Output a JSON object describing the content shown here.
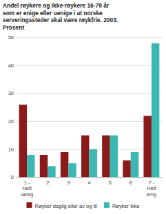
{
  "chart_data": {
    "type": "bar",
    "title": "Andel røykere og ikke-røykere 16-79 år\nsom er enige eller uenige i at norske\nserveringssteder skal være røykfrie. 2003.\nProsent",
    "categories": [
      "1 -\nHelt\nuenig",
      "2",
      "3",
      "4",
      "5",
      "6",
      "7 -\nHelt\nenig"
    ],
    "series": [
      {
        "name": "Røyker daglig eller av og til",
        "color": "#8B1A1A",
        "values": [
          26,
          8,
          9,
          15,
          15,
          6,
          22
        ]
      },
      {
        "name": "Røyker ikke",
        "color": "#3CB8B2",
        "values": [
          8,
          4,
          5,
          10,
          15,
          9,
          48
        ]
      }
    ],
    "ylim": [
      0,
      50
    ],
    "yticks": [
      0,
      10,
      20,
      30,
      40,
      50
    ],
    "grid": true,
    "legend": "bottom"
  }
}
